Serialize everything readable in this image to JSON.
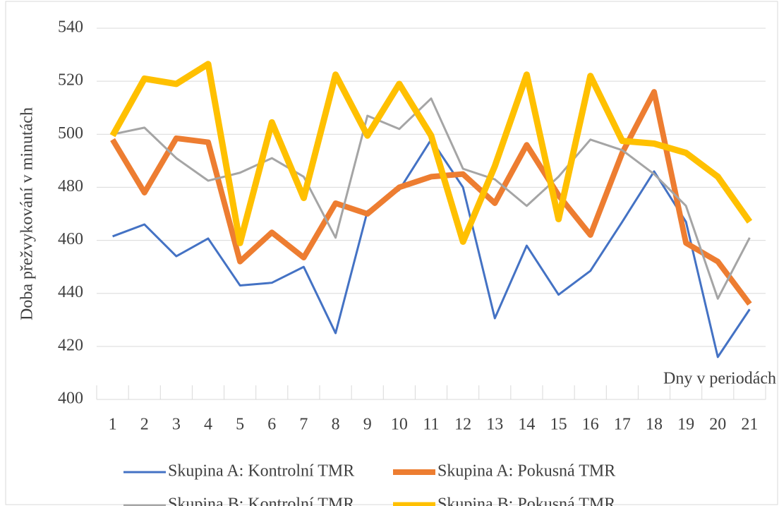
{
  "chart_data": {
    "type": "line",
    "x_label": "Dny v periodách",
    "y_label": "Doba přežvykování v minutách",
    "categories": [
      "1",
      "2",
      "3",
      "4",
      "5",
      "6",
      "7",
      "8",
      "9",
      "10",
      "11",
      "12",
      "13",
      "14",
      "15",
      "16",
      "17",
      "18",
      "19",
      "20",
      "21"
    ],
    "ylim": [
      400,
      540
    ],
    "yticks": [
      400,
      420,
      440,
      460,
      480,
      500,
      520,
      540
    ],
    "grid": true,
    "series": [
      {
        "name": "Skupina A: Kontrolní TMR",
        "color": "#4472c4",
        "values": [
          461.5,
          466,
          454,
          460.7,
          443,
          444,
          450,
          425,
          471,
          479,
          498,
          480,
          430.6,
          458,
          439.5,
          448.5,
          467,
          486,
          467,
          416,
          434
        ]
      },
      {
        "name": "Skupina A: Pokusná TMR",
        "color": "#ed7d31",
        "values": [
          498,
          478,
          498.5,
          497,
          452,
          463,
          453.5,
          474,
          470,
          480,
          484,
          485,
          474,
          496,
          477,
          462,
          493,
          516,
          459,
          452,
          436
        ]
      },
      {
        "name": "Skupina B: Kontrolní TMR",
        "color": "#a5a5a5",
        "values": [
          500,
          502.5,
          491,
          482.5,
          485.5,
          491,
          484,
          461,
          507,
          502,
          513.5,
          487,
          483,
          473,
          484,
          498,
          494,
          485,
          473,
          438,
          461
        ]
      },
      {
        "name": "Skupina B: Pokusná TMR",
        "color": "#ffc000",
        "values": [
          499.5,
          521,
          519,
          526.5,
          459,
          504.5,
          476,
          522.5,
          499.5,
          519,
          499.5,
          459.5,
          488,
          522.5,
          468,
          522,
          497.5,
          496.5,
          493,
          484,
          467
        ]
      }
    ]
  }
}
